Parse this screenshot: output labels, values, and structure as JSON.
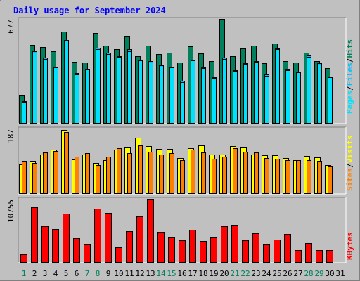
{
  "title": "Daily usage for September 2024",
  "colors": {
    "background": "#c0c0c0",
    "title": "#0000ff",
    "hits": "#00805c",
    "files": "#00c0ff",
    "pages": "#00e0ff",
    "visits": "#ffff00",
    "sites": "#ff8000",
    "kbytes": "#ff0000",
    "weekend_day": "#00805c",
    "weekday": "#0000ff"
  },
  "chart_data": [
    {
      "type": "bar",
      "panel": "hits_files_pages",
      "ymax_label": "677",
      "ylim": [
        0,
        677
      ],
      "legend": [
        "Pages",
        "/",
        "Files",
        "/",
        "Hits"
      ],
      "x": [
        1,
        2,
        3,
        4,
        5,
        6,
        7,
        8,
        9,
        10,
        11,
        12,
        13,
        14,
        15,
        16,
        17,
        18,
        19,
        20,
        21,
        22,
        23,
        24,
        25,
        26,
        27,
        28,
        29,
        30
      ],
      "series": [
        {
          "name": "Hits",
          "values": [
            185,
            510,
            495,
            470,
            595,
            400,
            395,
            585,
            505,
            480,
            570,
            435,
            505,
            450,
            460,
            395,
            500,
            455,
            405,
            675,
            435,
            485,
            505,
            390,
            520,
            405,
            395,
            460,
            405,
            360
          ]
        },
        {
          "name": "Files",
          "values": [
            145,
            470,
            425,
            370,
            540,
            325,
            355,
            490,
            460,
            435,
            480,
            415,
            405,
            375,
            370,
            275,
            415,
            365,
            300,
            425,
            345,
            390,
            405,
            320,
            485,
            355,
            335,
            440,
            390,
            305
          ]
        },
        {
          "name": "Pages",
          "values": [
            140,
            460,
            420,
            365,
            535,
            320,
            350,
            480,
            450,
            430,
            470,
            410,
            395,
            370,
            365,
            270,
            410,
            360,
            295,
            420,
            340,
            385,
            400,
            310,
            480,
            345,
            330,
            430,
            380,
            300
          ]
        }
      ]
    },
    {
      "type": "bar",
      "panel": "visits_sites",
      "ymax_label": "187",
      "ylim": [
        0,
        187
      ],
      "legend": [
        "Sites",
        "/",
        "Visits"
      ],
      "x": [
        1,
        2,
        3,
        4,
        5,
        6,
        7,
        8,
        9,
        10,
        11,
        12,
        13,
        14,
        15,
        16,
        17,
        18,
        19,
        20,
        21,
        22,
        23,
        24,
        25,
        26,
        27,
        28,
        29,
        30
      ],
      "series": [
        {
          "name": "Visits",
          "values": [
            84,
            95,
            113,
            127,
            182,
            99,
            113,
            89,
            96,
            126,
            135,
            161,
            137,
            128,
            128,
            103,
            131,
            138,
            112,
            113,
            136,
            134,
            113,
            110,
            110,
            102,
            96,
            109,
            105,
            82
          ]
        },
        {
          "name": "Sites",
          "values": [
            94,
            89,
            119,
            122,
            177,
            106,
            117,
            83,
            106,
            131,
            117,
            139,
            120,
            112,
            117,
            97,
            127,
            118,
            101,
            107,
            130,
            120,
            119,
            103,
            100,
            97,
            96,
            96,
            95,
            79
          ]
        }
      ]
    },
    {
      "type": "bar",
      "panel": "kbytes",
      "ymax_label": "10755",
      "ylim": [
        0,
        10755
      ],
      "legend": [
        "KBytes"
      ],
      "x": [
        1,
        2,
        3,
        4,
        5,
        6,
        7,
        8,
        9,
        10,
        11,
        12,
        13,
        14,
        15,
        16,
        17,
        18,
        19,
        20,
        21,
        22,
        23,
        24,
        25,
        26,
        27,
        28,
        29,
        30
      ],
      "series": [
        {
          "name": "KBytes",
          "values": [
            1400,
            9380,
            6170,
            5660,
            8260,
            4130,
            3060,
            9130,
            8350,
            2550,
            5300,
            7840,
            10755,
            5170,
            4260,
            3800,
            5510,
            3640,
            4290,
            6170,
            6430,
            3830,
            4980,
            3080,
            3890,
            4900,
            2160,
            3290,
            2150,
            2150
          ]
        }
      ]
    }
  ],
  "x_axis": {
    "labels": [
      "1",
      "2",
      "3",
      "4",
      "5",
      "6",
      "7",
      "8",
      "9",
      "10",
      "11",
      "12",
      "13",
      "14",
      "15",
      "16",
      "17",
      "18",
      "19",
      "20",
      "21",
      "22",
      "23",
      "24",
      "25",
      "26",
      "27",
      "28",
      "29",
      "30",
      "31"
    ],
    "weekend_days": [
      1,
      7,
      8,
      14,
      15,
      21,
      22,
      28,
      29
    ]
  }
}
